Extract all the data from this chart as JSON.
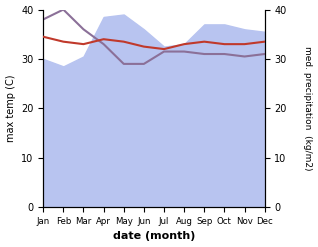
{
  "months": [
    "Jan",
    "Feb",
    "Mar",
    "Apr",
    "May",
    "Jun",
    "Jul",
    "Aug",
    "Sep",
    "Oct",
    "Nov",
    "Dec"
  ],
  "max_temp": [
    34.5,
    33.5,
    33.0,
    34.0,
    33.5,
    32.5,
    32.0,
    33.0,
    33.5,
    33.0,
    33.0,
    33.5
  ],
  "precipitation": [
    38.0,
    40.0,
    36.0,
    33.0,
    29.0,
    29.0,
    31.5,
    31.5,
    31.0,
    31.0,
    30.5,
    31.0
  ],
  "precip_area": [
    30.0,
    28.5,
    30.5,
    38.5,
    39.0,
    36.0,
    32.5,
    33.0,
    37.0,
    37.0,
    36.0,
    35.5
  ],
  "temp_color": "#c0392b",
  "precip_fill_color": "#b8c4f0",
  "precip_line_color": "#8b7098",
  "ylabel_left": "max temp (C)",
  "ylabel_right": "med. precipitation  (kg/m2)",
  "xlabel": "date (month)",
  "ylim_left": [
    0,
    40
  ],
  "ylim_right": [
    0,
    40
  ],
  "left_ticks": [
    0,
    10,
    20,
    30,
    40
  ],
  "right_ticks": [
    0,
    10,
    20,
    30,
    40
  ]
}
